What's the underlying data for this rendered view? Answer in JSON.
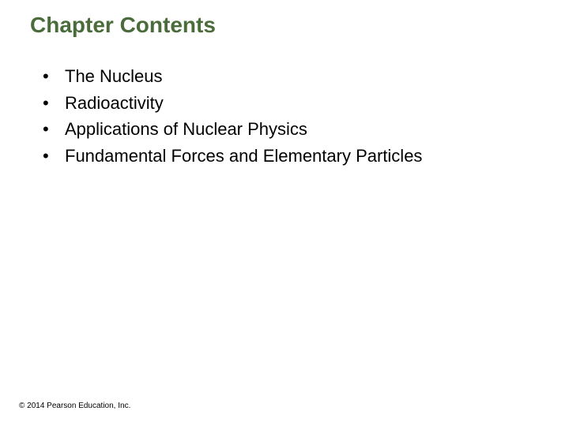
{
  "title": {
    "text": "Chapter Contents",
    "color": "#4a6b3a",
    "fontsize": 28
  },
  "list": {
    "bullet": "•",
    "text_color": "#000000",
    "bullet_color": "#000000",
    "fontsize": 22,
    "line_height": 1.35,
    "items": [
      "The Nucleus",
      "Radioactivity",
      "Applications of Nuclear Physics",
      "Fundamental Forces and Elementary Particles"
    ]
  },
  "copyright": {
    "text": "© 2014 Pearson Education, Inc.",
    "color": "#000000",
    "fontsize": 10
  }
}
